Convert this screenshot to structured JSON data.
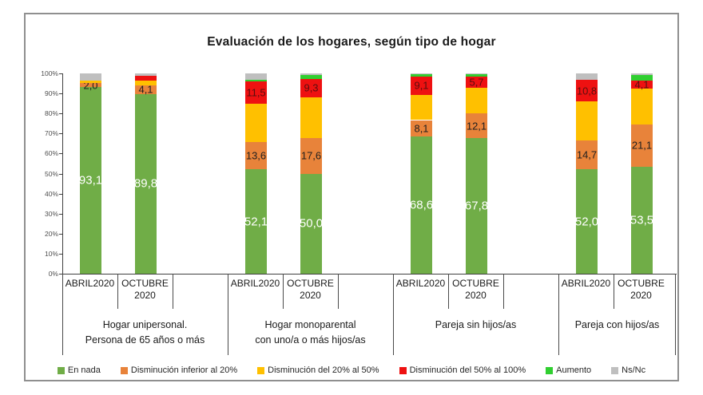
{
  "chart_data": {
    "type": "bar",
    "subtype": "stacked-100-percent",
    "title": "Evaluación de los hogares, según tipo de hogar",
    "ylim": [
      0,
      100
    ],
    "gridlines": false,
    "legend_position": "bottom",
    "y_ticks": [
      "100%",
      "90%",
      "80%",
      "70%",
      "60%",
      "50%",
      "40%",
      "30%",
      "20%",
      "10%",
      "0%"
    ],
    "series_order": [
      "en_nada",
      "dism_inf_20",
      "dism_20_50",
      "dism_50_100",
      "aumento",
      "ns_nc"
    ],
    "series_meta": {
      "en_nada": {
        "label": "En nada",
        "color": "#70AD47",
        "label_color": "#FFFFFF",
        "label_size": 15
      },
      "dism_inf_20": {
        "label": "Disminución inferior al 20%",
        "color": "#E8833A",
        "label_color": "#1F1F1F",
        "label_size": 13
      },
      "dism_20_50": {
        "label": "Disminución del 20% al 50%",
        "color": "#FFC000",
        "label_color": "#1F1F1F",
        "label_size": 13
      },
      "dism_50_100": {
        "label": "Disminución del 50% al 100%",
        "color": "#EE1111",
        "label_color": "#5A0F0F",
        "label_size": 13
      },
      "aumento": {
        "label": "Aumento",
        "color": "#30CF30",
        "label_color": "#1F1F1F",
        "label_size": 13
      },
      "ns_nc": {
        "label": "Ns/Nc",
        "color": "#BFBFBF",
        "label_color": "#1F1F1F",
        "label_size": 13
      }
    },
    "groups": [
      {
        "label_lines": [
          "Hogar unipersonal.",
          "Persona de 65 años o más"
        ],
        "bars": [
          {
            "period_lines": [
              "ABRIL2020"
            ],
            "values": {
              "en_nada": 93.1,
              "dism_inf_20": 2.0,
              "dism_20_50": 1.4,
              "dism_50_100": 0,
              "aumento": 0,
              "ns_nc": 3.5
            },
            "shown_labels": {
              "en_nada": "93,1",
              "dism_inf_20": "2,0"
            }
          },
          {
            "period_lines": [
              "OCTUBRE",
              "2020"
            ],
            "values": {
              "en_nada": 89.8,
              "dism_inf_20": 4.1,
              "dism_20_50": 2.4,
              "dism_50_100": 2.4,
              "aumento": 0,
              "ns_nc": 1.3
            },
            "shown_labels": {
              "en_nada": "89,8",
              "dism_inf_20": "4,1"
            }
          }
        ]
      },
      {
        "label_lines": [
          "Hogar monoparental",
          "con uno/a o más hijos/as"
        ],
        "bars": [
          {
            "period_lines": [
              "ABRIL2020"
            ],
            "values": {
              "en_nada": 52.1,
              "dism_inf_20": 13.6,
              "dism_20_50": 19.0,
              "dism_50_100": 11.5,
              "aumento": 0.8,
              "ns_nc": 3.0
            },
            "shown_labels": {
              "en_nada": "52,1",
              "dism_inf_20": "13,6",
              "dism_50_100": "11,5"
            }
          },
          {
            "period_lines": [
              "OCTUBRE",
              "2020"
            ],
            "values": {
              "en_nada": 50.0,
              "dism_inf_20": 17.6,
              "dism_20_50": 20.4,
              "dism_50_100": 9.3,
              "aumento": 1.9,
              "ns_nc": 0.8
            },
            "shown_labels": {
              "en_nada": "50,0",
              "dism_inf_20": "17,6",
              "dism_50_100": "9,3"
            }
          }
        ]
      },
      {
        "label_lines": [
          "Pareja sin hijos/as"
        ],
        "bars": [
          {
            "period_lines": [
              "ABRIL2020"
            ],
            "values": {
              "en_nada": 68.6,
              "dism_inf_20": 8.1,
              "dism_20_50": 12.7,
              "dism_50_100": 9.1,
              "aumento": 1.0,
              "ns_nc": 0.5
            },
            "shown_labels": {
              "en_nada": "68,6",
              "dism_inf_20": "8,1",
              "dism_50_100": "9,1"
            }
          },
          {
            "period_lines": [
              "OCTUBRE",
              "2020"
            ],
            "values": {
              "en_nada": 67.8,
              "dism_inf_20": 12.1,
              "dism_20_50": 13.0,
              "dism_50_100": 5.7,
              "aumento": 1.1,
              "ns_nc": 0.3
            },
            "shown_labels": {
              "en_nada": "67,8",
              "dism_inf_20": "12,1",
              "dism_50_100": "5,7"
            }
          }
        ]
      },
      {
        "label_lines": [
          "Pareja con hijos/as"
        ],
        "bars": [
          {
            "period_lines": [
              "ABRIL2020"
            ],
            "values": {
              "en_nada": 52.0,
              "dism_inf_20": 14.7,
              "dism_20_50": 19.2,
              "dism_50_100": 10.8,
              "aumento": 0,
              "ns_nc": 3.3
            },
            "shown_labels": {
              "en_nada": "52,0",
              "dism_inf_20": "14,7",
              "dism_50_100": "10,8"
            }
          },
          {
            "period_lines": [
              "OCTUBRE",
              "2020"
            ],
            "values": {
              "en_nada": 53.5,
              "dism_inf_20": 21.1,
              "dism_20_50": 17.7,
              "dism_50_100": 4.1,
              "aumento": 2.7,
              "ns_nc": 0.9
            },
            "shown_labels": {
              "en_nada": "53,5",
              "dism_inf_20": "21,1",
              "dism_50_100": "4,1"
            }
          }
        ]
      }
    ]
  }
}
